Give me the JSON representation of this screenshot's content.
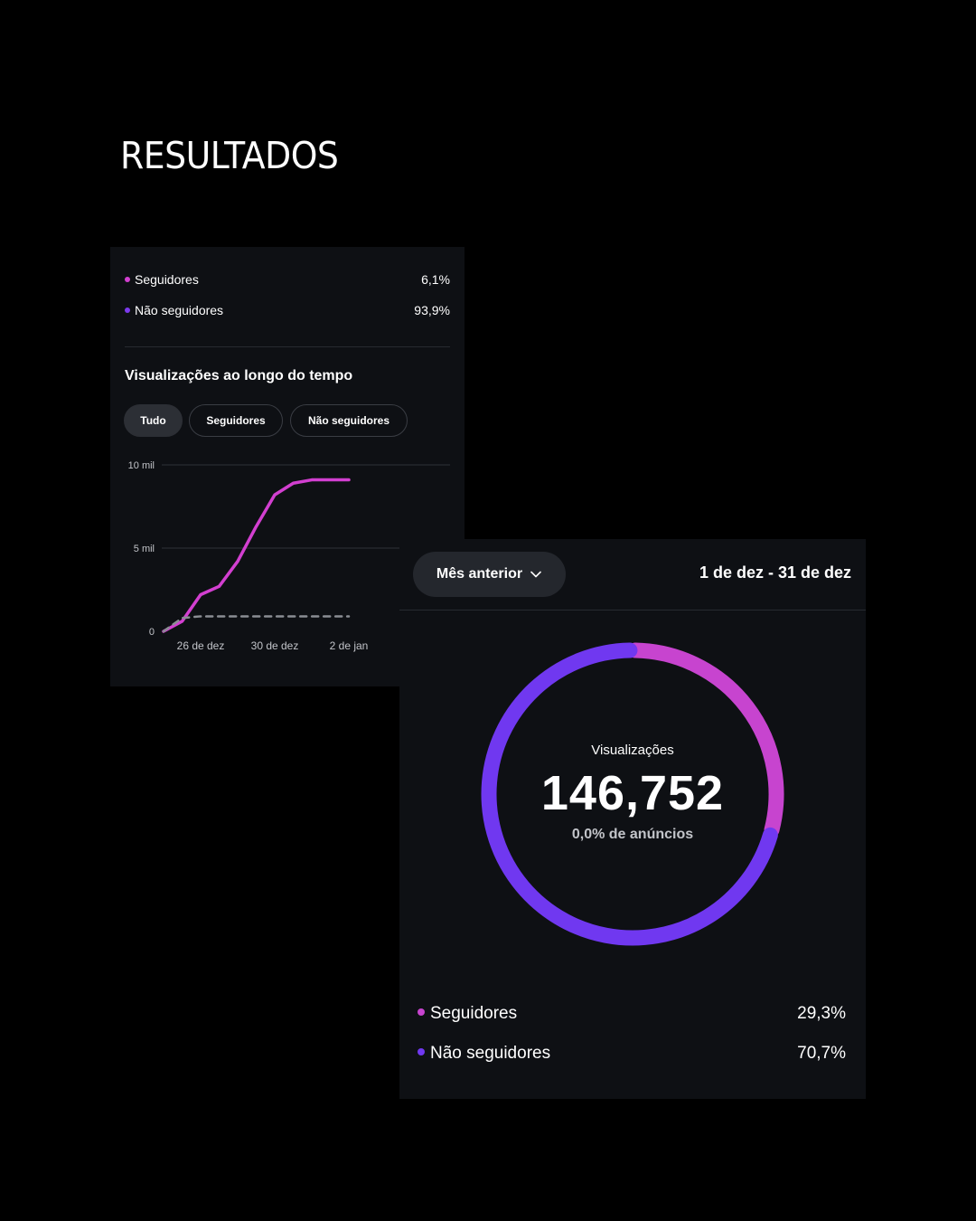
{
  "page_title": "RESULTADOS",
  "card1": {
    "legend": [
      {
        "label": "Seguidores",
        "value": "6,1%",
        "color": "#d23fd0"
      },
      {
        "label": "Não seguidores",
        "value": "93,9%",
        "color": "#7c3aed"
      }
    ],
    "section_title": "Visualizações ao longo do tempo",
    "filters": [
      "Tudo",
      "Seguidores",
      "Não seguidores"
    ],
    "active_filter": "Tudo"
  },
  "chart_data": {
    "type": "line",
    "title": "Visualizações ao longo do tempo",
    "y_tick_labels": [
      "0",
      "5 mil",
      "10 mil"
    ],
    "ylim": [
      0,
      10000
    ],
    "x_tick_labels": [
      "26 de dez",
      "30 de dez",
      "2 de jan"
    ],
    "x": [
      "24 de dez",
      "25 de dez",
      "26 de dez",
      "27 de dez",
      "28 de dez",
      "29 de dez",
      "30 de dez",
      "31 de dez",
      "1 de jan",
      "2 de jan",
      "3 de jan"
    ],
    "series": [
      {
        "color": "#d23fd0",
        "style": "solid",
        "values": [
          0,
          600,
          2200,
          2700,
          4200,
          6300,
          8200,
          8900,
          9100,
          9100,
          9100
        ]
      },
      {
        "color": "#8a8d93",
        "style": "dashed",
        "values": [
          0,
          800,
          900,
          900,
          900,
          900,
          900,
          900,
          900,
          900,
          900
        ]
      }
    ],
    "grid": true
  },
  "card2": {
    "period_label": "Mês anterior",
    "date_range": "1 de dez - 31 de dez",
    "donut_label": "Visualizações",
    "donut_value": "146,752",
    "donut_sub": "0,0% de anúncios",
    "donut_chart": {
      "type": "pie",
      "slices": [
        {
          "label": "Seguidores",
          "value": 29.3,
          "color": "#c744cf"
        },
        {
          "label": "Não seguidores",
          "value": 70.7,
          "color": "#7038f0"
        }
      ]
    },
    "legend": [
      {
        "label": "Seguidores",
        "value": "29,3%",
        "color": "#c744cf"
      },
      {
        "label": "Não seguidores",
        "value": "70,7%",
        "color": "#7038f0"
      }
    ]
  }
}
